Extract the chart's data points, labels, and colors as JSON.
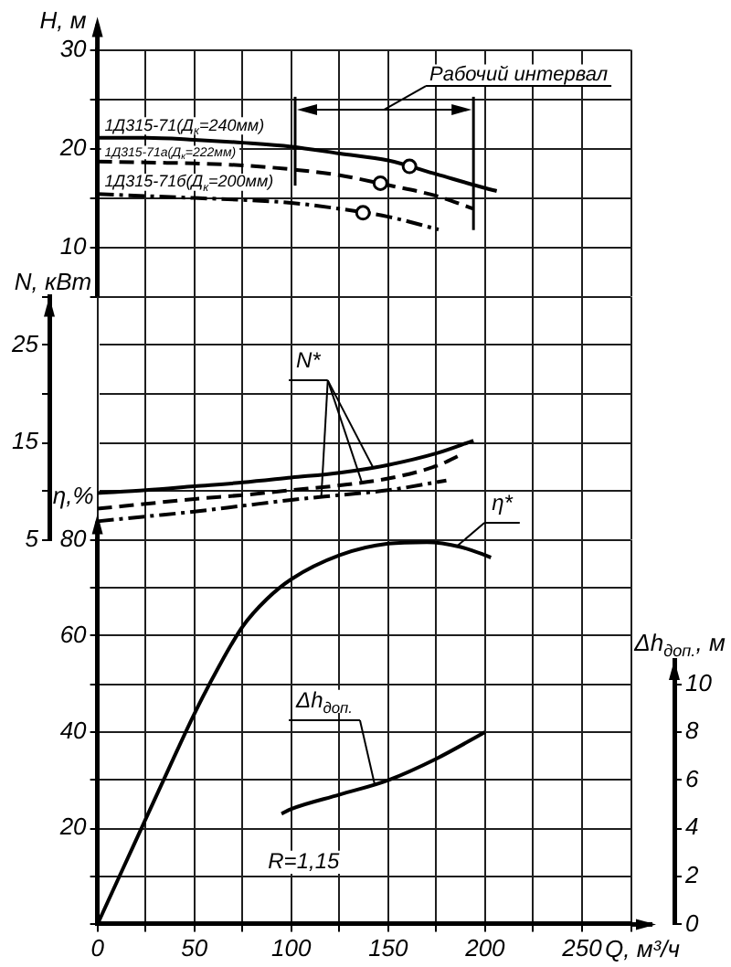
{
  "chart_data": [
    {
      "type": "line",
      "ylabel": "H, м",
      "xlim": [
        0,
        275
      ],
      "xticks": [
        0,
        {
          "value": 25,
          "label": null
        },
        50,
        {
          "value": 75,
          "label": null
        },
        100,
        {
          "value": 125,
          "label": null
        },
        150,
        {
          "value": 175,
          "label": null
        },
        200,
        {
          "value": 225,
          "label": null
        },
        250,
        {
          "value": 275,
          "label": null
        }
      ],
      "ylim": [
        5,
        30
      ],
      "yticks": [
        {
          "value": 5,
          "label": null
        },
        10,
        {
          "value": 15,
          "label": null
        },
        20,
        {
          "value": 25,
          "label": null
        },
        30
      ],
      "tick_labels": "y",
      "grid": true,
      "legend": false,
      "marker": "none",
      "series": [
        {
          "name": "1Д315-71(Д$_{к}$=240мм)",
          "color": "#000000",
          "line_style": "solid",
          "x": [
            0,
            25,
            50,
            75,
            100,
            125,
            150,
            175,
            200,
            206
          ],
          "values": [
            21.1,
            21.1,
            20.9,
            20.6,
            20.2,
            19.5,
            18.8,
            17.4,
            16.0,
            15.7
          ]
        },
        {
          "name": "1Д315-71а(Д$_{к}$=222мм)",
          "color": "#000000",
          "line_style": "dashed",
          "x": [
            0,
            25,
            50,
            75,
            100,
            125,
            150,
            175,
            194
          ],
          "values": [
            18.7,
            18.6,
            18.5,
            18.3,
            17.9,
            17.3,
            16.3,
            15.2,
            13.9
          ]
        },
        {
          "name": "1Д315-71б(Д$_{к}$=200мм)",
          "color": "#000000",
          "line_style": "dashdot",
          "x": [
            0,
            25,
            50,
            75,
            100,
            125,
            150,
            176
          ],
          "values": [
            15.4,
            15.2,
            15.0,
            14.8,
            14.5,
            13.9,
            13.1,
            11.8
          ]
        },
        {
          "type": "scatter",
          "marker": "circle",
          "color": "#000000",
          "x": [
            161,
            146,
            137
          ],
          "values": [
            18.2,
            16.5,
            13.5
          ]
        }
      ],
      "ref_lines": [
        {
          "axis": "x",
          "value": 102
        },
        {
          "axis": "x",
          "value": 194
        }
      ],
      "annotations": [
        "Рабочий интервал"
      ]
    },
    {
      "type": "line",
      "ylabel": "N, кВт",
      "xlim": [
        0,
        275
      ],
      "xticks": [
        0,
        {
          "value": 25,
          "label": null
        },
        50,
        {
          "value": 75,
          "label": null
        },
        100,
        {
          "value": 125,
          "label": null
        },
        150,
        {
          "value": 175,
          "label": null
        },
        200,
        {
          "value": 225,
          "label": null
        },
        250,
        {
          "value": 275,
          "label": null
        }
      ],
      "ylim": [
        5,
        30
      ],
      "yticks": [
        5,
        {
          "value": 10,
          "label": null
        },
        15,
        {
          "value": 20,
          "label": null
        },
        25,
        {
          "value": 30,
          "label": null
        }
      ],
      "tick_labels": "y",
      "grid": true,
      "legend": false,
      "marker": "none",
      "series": [
        {
          "name": "N*",
          "color": "#000000",
          "line_style": "solid",
          "x": [
            0,
            25,
            50,
            75,
            100,
            125,
            150,
            175,
            194
          ],
          "values": [
            9.8,
            10.1,
            10.5,
            10.9,
            11.4,
            11.9,
            12.7,
            13.9,
            15.2
          ]
        },
        {
          "color": "#000000",
          "line_style": "dashed",
          "x": [
            0,
            25,
            50,
            75,
            100,
            125,
            150,
            175,
            188
          ],
          "values": [
            8.2,
            8.7,
            9.2,
            9.6,
            10.1,
            10.6,
            11.3,
            12.6,
            13.8
          ]
        },
        {
          "color": "#000000",
          "line_style": "dashdot",
          "x": [
            0,
            25,
            50,
            75,
            100,
            125,
            150,
            180
          ],
          "values": [
            6.9,
            7.4,
            7.9,
            8.5,
            9.1,
            9.6,
            10.1,
            11.1
          ]
        }
      ]
    },
    {
      "type": "line",
      "xlabel": "Q, м³/ч",
      "ylabel": "η,%",
      "y2label": "Δh$_{доп.}$, м",
      "xlim": [
        0,
        275
      ],
      "xticks": [
        0,
        {
          "value": 25,
          "label": null
        },
        50,
        {
          "value": 75,
          "label": null
        },
        100,
        {
          "value": 125,
          "label": null
        },
        150,
        {
          "value": 175,
          "label": null
        },
        200,
        {
          "value": 225,
          "label": null
        },
        250,
        {
          "value": 275,
          "label": null
        }
      ],
      "ylim": [
        0,
        80
      ],
      "yticks": [
        {
          "value": 0,
          "label": null
        },
        {
          "value": 10,
          "label": null
        },
        20,
        {
          "value": 30,
          "label": null
        },
        40,
        {
          "value": 50,
          "label": null
        },
        60,
        {
          "value": 70,
          "label": null
        },
        80
      ],
      "y2lim": [
        0,
        11
      ],
      "y2ticks": [
        0,
        2,
        4,
        6,
        8,
        10
      ],
      "grid": true,
      "legend": false,
      "marker": "none",
      "series": [
        {
          "name": "η*",
          "color": "#000000",
          "line_style": "solid",
          "x": [
            0,
            12.5,
            25,
            37.5,
            50,
            62.5,
            75,
            87.5,
            100,
            125,
            150,
            170,
            187.5,
            200,
            203
          ],
          "values": [
            0,
            11,
            22,
            33,
            43.8,
            53.5,
            62,
            67.7,
            71.8,
            76.8,
            79.2,
            79.5,
            78.5,
            76.8,
            76.3
          ]
        },
        {
          "name": "Δh$_{доп.}$",
          "axis": "y2",
          "color": "#000000",
          "line_style": "solid",
          "x": [
            95,
            100,
            125,
            150,
            175,
            200
          ],
          "values": [
            4.6,
            4.8,
            5.4,
            6.0,
            6.9,
            8.0
          ]
        }
      ],
      "annotations": [
        "R=1,15"
      ]
    }
  ]
}
